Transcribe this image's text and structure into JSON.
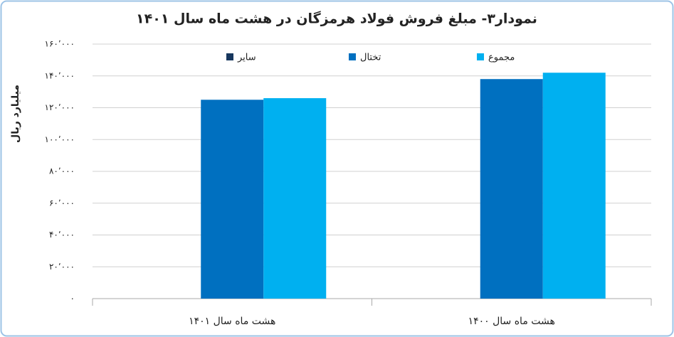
{
  "chart_data": {
    "type": "bar",
    "title": "نمودار۳- مبلغ فروش فولاد هرمزگان در هشت ماه سال ۱۴۰۱",
    "y_label": "میلیارد ریال",
    "categories": [
      "هشت ماه سال ۱۴۰۱",
      "هشت ماه سال ۱۴۰۰"
    ],
    "series": [
      {
        "name": "سایر",
        "color": "#17375e",
        "values": [
          0,
          0
        ]
      },
      {
        "name": "تختال",
        "color": "#0070c0",
        "values": [
          125000,
          138000
        ]
      },
      {
        "name": "مجموع",
        "color": "#00b0f0",
        "values": [
          126000,
          142000
        ]
      }
    ],
    "ylim": [
      0,
      160000
    ],
    "yticks": [
      {
        "value": 0,
        "label": "۰"
      },
      {
        "value": 20000,
        "label": "۲۰٬۰۰۰"
      },
      {
        "value": 40000,
        "label": "۴۰٬۰۰۰"
      },
      {
        "value": 60000,
        "label": "۶۰٬۰۰۰"
      },
      {
        "value": 80000,
        "label": "۸۰٬۰۰۰"
      },
      {
        "value": 100000,
        "label": "۱۰۰٬۰۰۰"
      },
      {
        "value": 120000,
        "label": "۱۲۰٬۰۰۰"
      },
      {
        "value": 140000,
        "label": "۱۴۰٬۰۰۰"
      },
      {
        "value": 160000,
        "label": "۱۶۰٬۰۰۰"
      }
    ],
    "grid": true,
    "legend": "top"
  }
}
